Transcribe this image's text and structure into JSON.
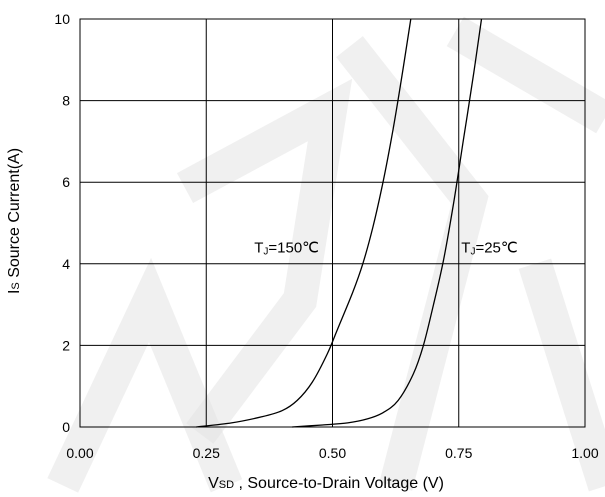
{
  "chart_data": {
    "type": "line",
    "title": "",
    "xlabel": {
      "main": "V",
      "sub": "SD",
      "rest": " , Source-to-Drain Voltage (V)"
    },
    "ylabel": {
      "main": "I",
      "sub": "S",
      "rest": " Source Current(A)"
    },
    "xlim": [
      0,
      1
    ],
    "ylim": [
      0,
      10
    ],
    "xticks": [
      0,
      0.25,
      0.5,
      0.75,
      1
    ],
    "xtick_labels": [
      "0.00",
      "0.25",
      "0.50",
      "0.75",
      "1.00"
    ],
    "yticks": [
      0,
      2,
      4,
      6,
      8,
      10
    ],
    "ytick_labels": [
      "0",
      "2",
      "4",
      "6",
      "8",
      "10"
    ],
    "grid": true,
    "legend": "none",
    "series": [
      {
        "name": "TJ=150℃",
        "x": [
          0.23,
          0.3,
          0.36,
          0.4,
          0.43,
          0.46,
          0.49,
          0.51,
          0.54,
          0.56,
          0.58,
          0.6,
          0.62,
          0.64,
          0.655
        ],
        "y": [
          0,
          0.1,
          0.25,
          0.4,
          0.65,
          1.1,
          1.8,
          2.4,
          3.3,
          4.0,
          4.9,
          6.0,
          7.3,
          8.8,
          10
        ]
      },
      {
        "name": "TJ=25℃",
        "x": [
          0.42,
          0.48,
          0.53,
          0.57,
          0.6,
          0.63,
          0.66,
          0.68,
          0.7,
          0.72,
          0.74,
          0.76,
          0.78,
          0.795
        ],
        "y": [
          0,
          0.05,
          0.1,
          0.2,
          0.35,
          0.65,
          1.3,
          2.0,
          3.0,
          4.1,
          5.5,
          7.1,
          8.7,
          10
        ]
      }
    ],
    "annotations": [
      {
        "main": "T",
        "sub": "J",
        "rest": "=150℃",
        "x": 0.345,
        "y": 4.4
      },
      {
        "main": "T",
        "sub": "J",
        "rest": "=25℃",
        "x": 0.755,
        "y": 4.4
      }
    ]
  }
}
